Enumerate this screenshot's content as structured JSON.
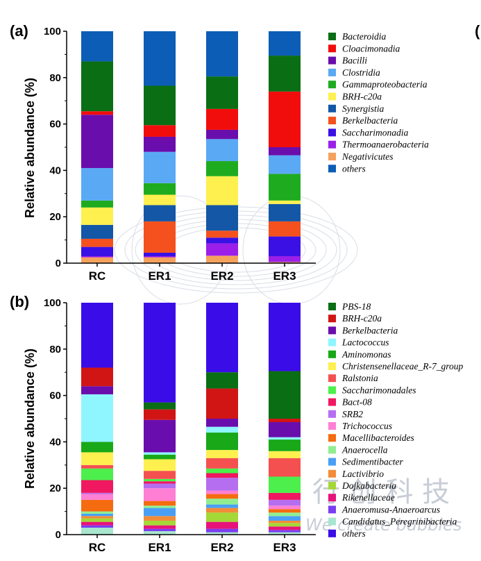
{
  "panels": [
    {
      "letter": "(a)",
      "ylabel": "Relative abundance (%)",
      "categories": [
        "RC",
        "ER1",
        "ER2",
        "ER3"
      ]
    },
    {
      "letter": "(b)",
      "ylabel": "Relative abundance (%)",
      "categories": [
        "RC",
        "ER1",
        "ER2",
        "ER3"
      ]
    }
  ],
  "clipped_letter": "(",
  "watermark": {
    "text": "行 创 科 技",
    "subtitle": "We create bubbles"
  },
  "chart_data": [
    {
      "type": "bar",
      "stacked": true,
      "title": "",
      "xlabel": "",
      "ylabel": "Relative abundance (%)",
      "ylim": [
        0,
        100
      ],
      "yticks": [
        0,
        20,
        40,
        60,
        80,
        100
      ],
      "categories": [
        "RC",
        "ER1",
        "ER2",
        "ER3"
      ],
      "legend_position": "right",
      "series": [
        {
          "name": "Negativicutes",
          "color": "#f5a25d",
          "values": [
            2.5,
            2.5,
            3.2,
            0.5
          ]
        },
        {
          "name": "Thermoanaerobacteria",
          "color": "#9b1fe8",
          "values": [
            0.5,
            0.5,
            5.3,
            2.5
          ]
        },
        {
          "name": "Saccharimonadia",
          "color": "#3a10e5",
          "values": [
            4.0,
            1.5,
            2.5,
            8.5
          ]
        },
        {
          "name": "Berkelbacteria",
          "color": "#f4511e",
          "values": [
            3.5,
            13.5,
            3.0,
            6.5
          ]
        },
        {
          "name": "Synergistia",
          "color": "#1357a6",
          "values": [
            6.0,
            7.0,
            11.0,
            7.5
          ]
        },
        {
          "name": "BRH-c20a",
          "color": "#fdf04f",
          "values": [
            7.5,
            4.5,
            12.5,
            1.5
          ]
        },
        {
          "name": "Gammaproteobacteria",
          "color": "#1fab1f",
          "values": [
            3.0,
            5.0,
            6.5,
            11.5
          ]
        },
        {
          "name": "Clostridia",
          "color": "#5aa9f5",
          "values": [
            14.0,
            13.5,
            9.5,
            8.0
          ]
        },
        {
          "name": "Bacilli",
          "color": "#6a0dad",
          "values": [
            23.0,
            6.5,
            4.0,
            3.5
          ]
        },
        {
          "name": "Cloacimonadia",
          "color": "#f20d0d",
          "values": [
            1.5,
            5.0,
            9.0,
            24.0
          ]
        },
        {
          "name": "Bacteroidia",
          "color": "#0a6e14",
          "values": [
            21.5,
            17.0,
            14.0,
            15.5
          ]
        },
        {
          "name": "others",
          "color": "#0c5db5",
          "values": [
            13.0,
            23.5,
            19.5,
            10.5
          ]
        }
      ],
      "legend_order": [
        "Bacteroidia",
        "Cloacimonadia",
        "Bacilli",
        "Clostridia",
        "Gammaproteobacteria",
        "BRH-c20a",
        "Synergistia",
        "Berkelbacteria",
        "Saccharimonadia",
        "Thermoanaerobacteria",
        "Negativicutes",
        "others"
      ]
    },
    {
      "type": "bar",
      "stacked": true,
      "title": "",
      "xlabel": "",
      "ylabel": "Relative abundance (%)",
      "ylim": [
        0,
        100
      ],
      "yticks": [
        0,
        20,
        40,
        60,
        80,
        100
      ],
      "categories": [
        "RC",
        "ER1",
        "ER2",
        "ER3"
      ],
      "legend_position": "right",
      "series": [
        {
          "name": "Candidatus_Peregrinibacteria",
          "color": "#a8e6cf",
          "values": [
            3.0,
            1.5,
            1.0,
            1.0
          ]
        },
        {
          "name": "Anaeromusa-Anaeroarcus",
          "color": "#7a3df0",
          "values": [
            1.0,
            1.0,
            1.5,
            1.0
          ]
        },
        {
          "name": "Rikenellaceae",
          "color": "#e6137a",
          "values": [
            1.5,
            1.5,
            3.0,
            1.5
          ]
        },
        {
          "name": "Dojkabacteria",
          "color": "#a4d837",
          "values": [
            1.5,
            2.0,
            4.0,
            1.5
          ]
        },
        {
          "name": "Lactivibrio",
          "color": "#f28c38",
          "values": [
            1.0,
            2.0,
            2.0,
            1.0
          ]
        },
        {
          "name": "Sedimentibacter",
          "color": "#4a9ff5",
          "values": [
            1.0,
            3.5,
            1.5,
            2.0
          ]
        },
        {
          "name": "Anaerocella",
          "color": "#90ee90",
          "values": [
            1.0,
            1.0,
            2.5,
            1.5
          ]
        },
        {
          "name": "Macellibacteroides",
          "color": "#f56b0f",
          "values": [
            5.0,
            2.0,
            2.0,
            1.5
          ]
        },
        {
          "name": "Trichococcus",
          "color": "#ff7fd4",
          "values": [
            2.5,
            5.5,
            1.5,
            1.5
          ]
        },
        {
          "name": "SRB2",
          "color": "#b56ef0",
          "values": [
            0.5,
            2.0,
            5.5,
            2.5
          ]
        },
        {
          "name": "Bact-08",
          "color": "#f01860",
          "values": [
            5.5,
            1.0,
            2.0,
            3.0
          ]
        },
        {
          "name": "Saccharimonadales",
          "color": "#4cef4c",
          "values": [
            5.0,
            1.0,
            2.0,
            7.0
          ]
        },
        {
          "name": "Ralstonia",
          "color": "#f45050",
          "values": [
            1.5,
            3.5,
            4.5,
            8.0
          ]
        },
        {
          "name": "Christensenellaceae_R-7_group",
          "color": "#fdf04f",
          "values": [
            5.5,
            5.0,
            3.5,
            3.0
          ]
        },
        {
          "name": "Aminomonas",
          "color": "#18a818",
          "values": [
            4.5,
            2.0,
            7.5,
            5.0
          ]
        },
        {
          "name": "Lactococcus",
          "color": "#8ff5ff",
          "values": [
            20.5,
            1.0,
            2.5,
            1.0
          ]
        },
        {
          "name": "Berkelbacteria",
          "color": "#6a0dad",
          "values": [
            3.5,
            14.0,
            3.5,
            6.5
          ]
        },
        {
          "name": "BRH-c20a",
          "color": "#d11515",
          "values": [
            8.0,
            4.5,
            13.0,
            1.5
          ]
        },
        {
          "name": "PBS-18",
          "color": "#0a6e14",
          "values": [
            0.0,
            3.0,
            7.0,
            20.5
          ]
        },
        {
          "name": "others",
          "color": "#3a0ce8",
          "values": [
            28.0,
            43.0,
            30.0,
            30.5
          ]
        }
      ],
      "legend_order": [
        "PBS-18",
        "BRH-c20a",
        "Berkelbacteria",
        "Lactococcus",
        "Aminomonas",
        "Christensenellaceae_R-7_group",
        "Ralstonia",
        "Saccharimonadales",
        "Bact-08",
        "SRB2",
        "Trichococcus",
        "Macellibacteroides",
        "Anaerocella",
        "Sedimentibacter",
        "Lactivibrio",
        "Dojkabacteria",
        "Rikenellaceae",
        "Anaeromusa-Anaeroarcus",
        "Candidatus_Peregrinibacteria",
        "others"
      ]
    }
  ]
}
